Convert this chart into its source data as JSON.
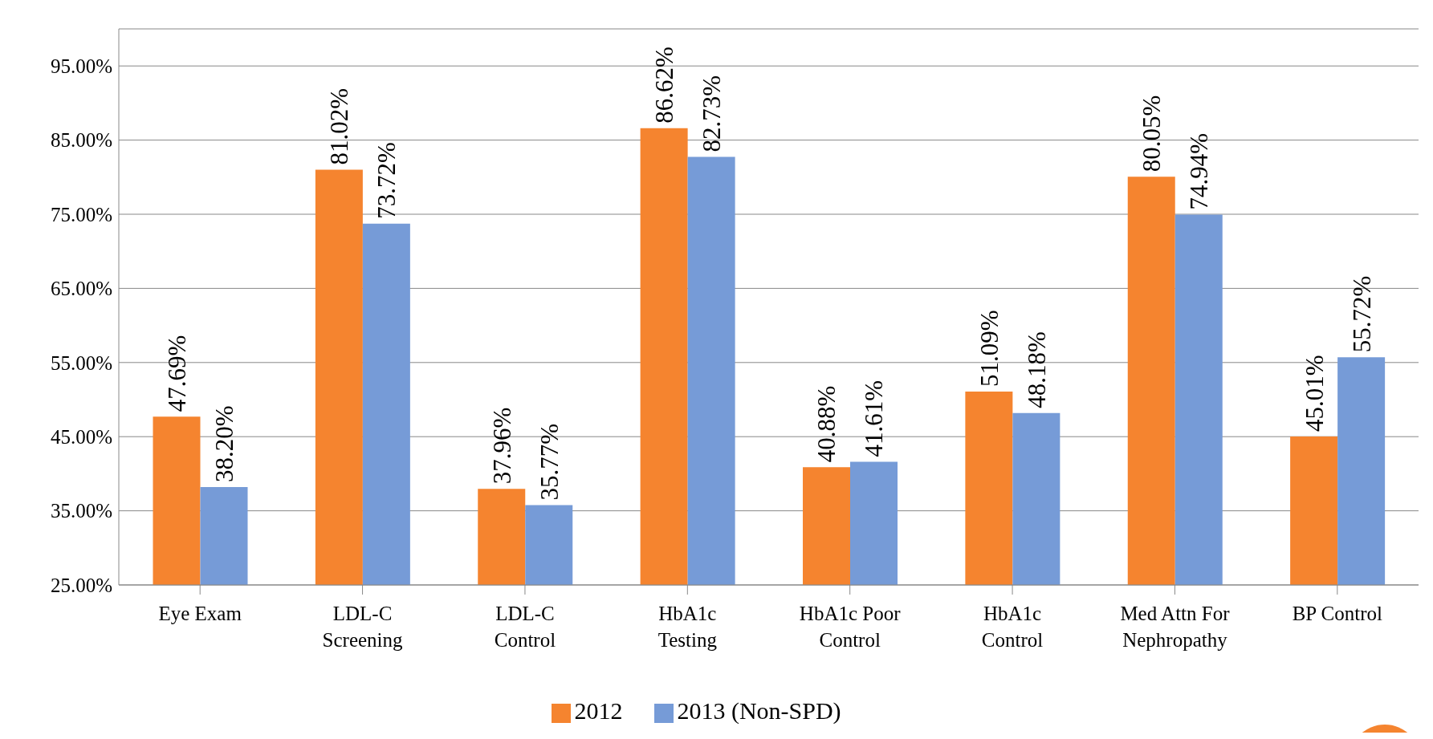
{
  "chart_data": {
    "type": "bar",
    "categories": [
      "Eye Exam",
      "LDL-C Screening",
      "LDL-C Control",
      "HbA1c Testing",
      "HbA1c Poor Control",
      "HbA1c Control",
      "Med Attn For Nephropathy",
      "BP Control"
    ],
    "series": [
      {
        "name": "2012",
        "color": "#f5842f",
        "values": [
          47.69,
          81.02,
          37.96,
          86.62,
          40.88,
          51.09,
          80.05,
          45.01
        ],
        "value_labels": [
          "47.69%",
          "81.02%",
          "37.96%",
          "86.62%",
          "40.88%",
          "51.09%",
          "80.05%",
          "45.01%"
        ]
      },
      {
        "name": "2013 (Non-SPD)",
        "color": "#769bd7",
        "values": [
          38.2,
          73.72,
          35.77,
          82.73,
          41.61,
          48.18,
          74.94,
          55.72
        ],
        "value_labels": [
          "38.20%",
          "73.72%",
          "35.77%",
          "82.73%",
          "41.61%",
          "48.18%",
          "74.94%",
          "55.72%"
        ]
      }
    ],
    "ylim": [
      25,
      100
    ],
    "yticks": [
      {
        "value": 25,
        "label": "25.00%"
      },
      {
        "value": 35,
        "label": "35.00%"
      },
      {
        "value": 45,
        "label": "45.00%"
      },
      {
        "value": 55,
        "label": "55.00%"
      },
      {
        "value": 65,
        "label": "65.00%"
      },
      {
        "value": 75,
        "label": "75.00%"
      },
      {
        "value": 85,
        "label": "85.00%"
      },
      {
        "value": 95,
        "label": "95.00%"
      }
    ],
    "grid": "y",
    "legend": "bottom"
  }
}
